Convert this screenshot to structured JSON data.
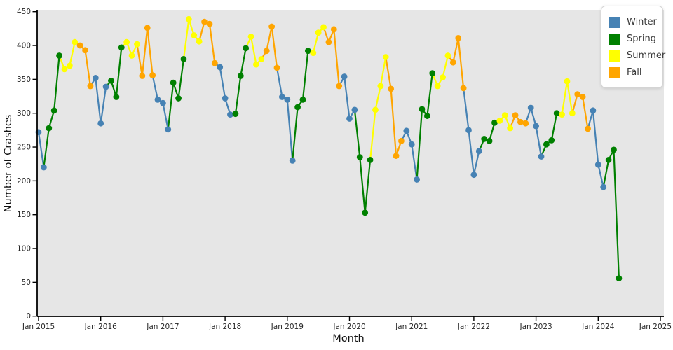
{
  "page": {
    "background": "#ffffff"
  },
  "legend": {
    "items": [
      {
        "label": "Winter",
        "color": "#4682B4"
      },
      {
        "label": "Spring",
        "color": "#008000"
      },
      {
        "label": "Summer",
        "color": "#FFFF00"
      },
      {
        "label": "Fall",
        "color": "#FFA500"
      }
    ]
  },
  "chart_data": {
    "type": "line",
    "title": "",
    "xlabel": "Month",
    "ylabel": "Number of Crashes",
    "ylim": [
      0,
      450
    ],
    "y_ticks": [
      0,
      50,
      100,
      150,
      200,
      250,
      300,
      350,
      400,
      450
    ],
    "x_ticks": [
      {
        "label": "Jan 2015",
        "month": "2015-01"
      },
      {
        "label": "Jan 2016",
        "month": "2016-01"
      },
      {
        "label": "Jan 2017",
        "month": "2017-01"
      },
      {
        "label": "Jan 2018",
        "month": "2018-01"
      },
      {
        "label": "Jan 2019",
        "month": "2019-01"
      },
      {
        "label": "Jan 2020",
        "month": "2020-01"
      },
      {
        "label": "Jan 2021",
        "month": "2021-01"
      },
      {
        "label": "Jan 2022",
        "month": "2022-01"
      },
      {
        "label": "Jan 2023",
        "month": "2023-01"
      },
      {
        "label": "Jan 2024",
        "month": "2024-01"
      },
      {
        "label": "Jan 2025",
        "month": "2025-01"
      }
    ],
    "grid": false,
    "plot_background": "#e6e6e6",
    "legend_position": "upper right",
    "season_colors": {
      "Winter": "#4682B4",
      "Spring": "#008000",
      "Summer": "#FFFF00",
      "Fall": "#FFA500"
    },
    "points": [
      {
        "month": "2015-01",
        "season": "Winter",
        "value": 272
      },
      {
        "month": "2015-02",
        "season": "Winter",
        "value": 220
      },
      {
        "month": "2015-03",
        "season": "Spring",
        "value": 278
      },
      {
        "month": "2015-04",
        "season": "Spring",
        "value": 304
      },
      {
        "month": "2015-05",
        "season": "Spring",
        "value": 385
      },
      {
        "month": "2015-06",
        "season": "Summer",
        "value": 365
      },
      {
        "month": "2015-07",
        "season": "Summer",
        "value": 370
      },
      {
        "month": "2015-08",
        "season": "Summer",
        "value": 405
      },
      {
        "month": "2015-09",
        "season": "Fall",
        "value": 400
      },
      {
        "month": "2015-10",
        "season": "Fall",
        "value": 393
      },
      {
        "month": "2015-11",
        "season": "Fall",
        "value": 340
      },
      {
        "month": "2015-12",
        "season": "Winter",
        "value": 352
      },
      {
        "month": "2016-01",
        "season": "Winter",
        "value": 285
      },
      {
        "month": "2016-02",
        "season": "Winter",
        "value": 339
      },
      {
        "month": "2016-03",
        "season": "Spring",
        "value": 348
      },
      {
        "month": "2016-04",
        "season": "Spring",
        "value": 324
      },
      {
        "month": "2016-05",
        "season": "Spring",
        "value": 397
      },
      {
        "month": "2016-06",
        "season": "Summer",
        "value": 405
      },
      {
        "month": "2016-07",
        "season": "Summer",
        "value": 385
      },
      {
        "month": "2016-08",
        "season": "Summer",
        "value": 402
      },
      {
        "month": "2016-09",
        "season": "Fall",
        "value": 355
      },
      {
        "month": "2016-10",
        "season": "Fall",
        "value": 426
      },
      {
        "month": "2016-11",
        "season": "Fall",
        "value": 356
      },
      {
        "month": "2016-12",
        "season": "Winter",
        "value": 320
      },
      {
        "month": "2017-01",
        "season": "Winter",
        "value": 315
      },
      {
        "month": "2017-02",
        "season": "Winter",
        "value": 276
      },
      {
        "month": "2017-03",
        "season": "Spring",
        "value": 345
      },
      {
        "month": "2017-04",
        "season": "Spring",
        "value": 322
      },
      {
        "month": "2017-05",
        "season": "Spring",
        "value": 380
      },
      {
        "month": "2017-06",
        "season": "Summer",
        "value": 439
      },
      {
        "month": "2017-07",
        "season": "Summer",
        "value": 415
      },
      {
        "month": "2017-08",
        "season": "Summer",
        "value": 406
      },
      {
        "month": "2017-09",
        "season": "Fall",
        "value": 435
      },
      {
        "month": "2017-10",
        "season": "Fall",
        "value": 432
      },
      {
        "month": "2017-11",
        "season": "Fall",
        "value": 374
      },
      {
        "month": "2017-12",
        "season": "Winter",
        "value": 368
      },
      {
        "month": "2018-01",
        "season": "Winter",
        "value": 322
      },
      {
        "month": "2018-02",
        "season": "Winter",
        "value": 298
      },
      {
        "month": "2018-03",
        "season": "Spring",
        "value": 299
      },
      {
        "month": "2018-04",
        "season": "Spring",
        "value": 355
      },
      {
        "month": "2018-05",
        "season": "Spring",
        "value": 396
      },
      {
        "month": "2018-06",
        "season": "Summer",
        "value": 413
      },
      {
        "month": "2018-07",
        "season": "Summer",
        "value": 372
      },
      {
        "month": "2018-08",
        "season": "Summer",
        "value": 380
      },
      {
        "month": "2018-09",
        "season": "Fall",
        "value": 392
      },
      {
        "month": "2018-10",
        "season": "Fall",
        "value": 428
      },
      {
        "month": "2018-11",
        "season": "Fall",
        "value": 367
      },
      {
        "month": "2018-12",
        "season": "Winter",
        "value": 324
      },
      {
        "month": "2019-01",
        "season": "Winter",
        "value": 320
      },
      {
        "month": "2019-02",
        "season": "Winter",
        "value": 230
      },
      {
        "month": "2019-03",
        "season": "Spring",
        "value": 309
      },
      {
        "month": "2019-04",
        "season": "Spring",
        "value": 320
      },
      {
        "month": "2019-05",
        "season": "Spring",
        "value": 392
      },
      {
        "month": "2019-06",
        "season": "Summer",
        "value": 389
      },
      {
        "month": "2019-07",
        "season": "Summer",
        "value": 419
      },
      {
        "month": "2019-08",
        "season": "Summer",
        "value": 427
      },
      {
        "month": "2019-09",
        "season": "Fall",
        "value": 405
      },
      {
        "month": "2019-10",
        "season": "Fall",
        "value": 424
      },
      {
        "month": "2019-11",
        "season": "Fall",
        "value": 340
      },
      {
        "month": "2019-12",
        "season": "Winter",
        "value": 354
      },
      {
        "month": "2020-01",
        "season": "Winter",
        "value": 292
      },
      {
        "month": "2020-02",
        "season": "Winter",
        "value": 305
      },
      {
        "month": "2020-03",
        "season": "Spring",
        "value": 235
      },
      {
        "month": "2020-04",
        "season": "Spring",
        "value": 153
      },
      {
        "month": "2020-05",
        "season": "Spring",
        "value": 231
      },
      {
        "month": "2020-06",
        "season": "Summer",
        "value": 305
      },
      {
        "month": "2020-07",
        "season": "Summer",
        "value": 340
      },
      {
        "month": "2020-08",
        "season": "Summer",
        "value": 383
      },
      {
        "month": "2020-09",
        "season": "Fall",
        "value": 336
      },
      {
        "month": "2020-10",
        "season": "Fall",
        "value": 237
      },
      {
        "month": "2020-11",
        "season": "Fall",
        "value": 259
      },
      {
        "month": "2020-12",
        "season": "Winter",
        "value": 274
      },
      {
        "month": "2021-01",
        "season": "Winter",
        "value": 254
      },
      {
        "month": "2021-02",
        "season": "Winter",
        "value": 202
      },
      {
        "month": "2021-03",
        "season": "Spring",
        "value": 306
      },
      {
        "month": "2021-04",
        "season": "Spring",
        "value": 296
      },
      {
        "month": "2021-05",
        "season": "Spring",
        "value": 359
      },
      {
        "month": "2021-06",
        "season": "Summer",
        "value": 340
      },
      {
        "month": "2021-07",
        "season": "Summer",
        "value": 353
      },
      {
        "month": "2021-08",
        "season": "Summer",
        "value": 385
      },
      {
        "month": "2021-09",
        "season": "Fall",
        "value": 375
      },
      {
        "month": "2021-10",
        "season": "Fall",
        "value": 411
      },
      {
        "month": "2021-11",
        "season": "Fall",
        "value": 337
      },
      {
        "month": "2021-12",
        "season": "Winter",
        "value": 275
      },
      {
        "month": "2022-01",
        "season": "Winter",
        "value": 209
      },
      {
        "month": "2022-02",
        "season": "Winter",
        "value": 244
      },
      {
        "month": "2022-03",
        "season": "Spring",
        "value": 262
      },
      {
        "month": "2022-04",
        "season": "Spring",
        "value": 259
      },
      {
        "month": "2022-05",
        "season": "Spring",
        "value": 286
      },
      {
        "month": "2022-06",
        "season": "Summer",
        "value": 289
      },
      {
        "month": "2022-07",
        "season": "Summer",
        "value": 297
      },
      {
        "month": "2022-08",
        "season": "Summer",
        "value": 278
      },
      {
        "month": "2022-09",
        "season": "Fall",
        "value": 297
      },
      {
        "month": "2022-10",
        "season": "Fall",
        "value": 287
      },
      {
        "month": "2022-11",
        "season": "Fall",
        "value": 285
      },
      {
        "month": "2022-12",
        "season": "Winter",
        "value": 308
      },
      {
        "month": "2023-01",
        "season": "Winter",
        "value": 281
      },
      {
        "month": "2023-02",
        "season": "Winter",
        "value": 236
      },
      {
        "month": "2023-03",
        "season": "Spring",
        "value": 254
      },
      {
        "month": "2023-04",
        "season": "Spring",
        "value": 260
      },
      {
        "month": "2023-05",
        "season": "Spring",
        "value": 300
      },
      {
        "month": "2023-06",
        "season": "Summer",
        "value": 298
      },
      {
        "month": "2023-07",
        "season": "Summer",
        "value": 347
      },
      {
        "month": "2023-08",
        "season": "Summer",
        "value": 300
      },
      {
        "month": "2023-09",
        "season": "Fall",
        "value": 328
      },
      {
        "month": "2023-10",
        "season": "Fall",
        "value": 324
      },
      {
        "month": "2023-11",
        "season": "Fall",
        "value": 277
      },
      {
        "month": "2023-12",
        "season": "Winter",
        "value": 304
      },
      {
        "month": "2024-01",
        "season": "Winter",
        "value": 224
      },
      {
        "month": "2024-02",
        "season": "Winter",
        "value": 191
      },
      {
        "month": "2024-03",
        "season": "Spring",
        "value": 231
      },
      {
        "month": "2024-04",
        "season": "Spring",
        "value": 246
      },
      {
        "month": "2024-05",
        "season": "Spring",
        "value": 56
      }
    ]
  }
}
